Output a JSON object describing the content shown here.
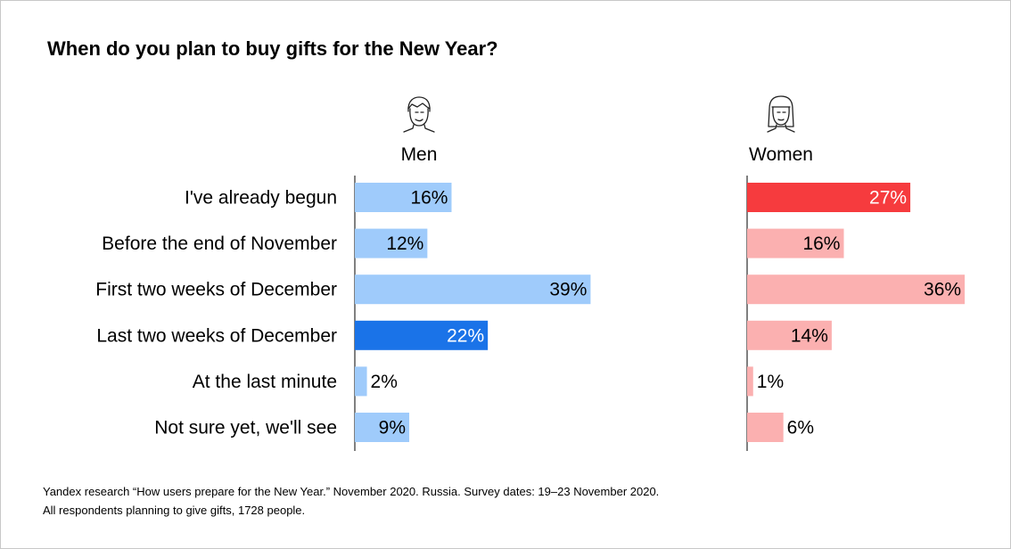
{
  "chart_data": {
    "type": "bar",
    "orientation": "horizontal",
    "title": "When do you plan to buy gifts for the New Year?",
    "categories": [
      "I've already begun",
      "Before the end of November",
      "First two weeks of December",
      "Last two weeks of December",
      "At the last minute",
      "Not sure yet, we'll see"
    ],
    "series": [
      {
        "name": "Men",
        "icon": "man-icon",
        "values": [
          16,
          12,
          39,
          22,
          2,
          9
        ],
        "labels": [
          "16%",
          "12%",
          "39%",
          "22%",
          "2%",
          "9%"
        ],
        "color": "#9fcbfb",
        "highlight_index": 3,
        "highlight_color": "#1a73e8"
      },
      {
        "name": "Women",
        "icon": "woman-icon",
        "values": [
          27,
          16,
          36,
          14,
          1,
          6
        ],
        "labels": [
          "27%",
          "16%",
          "36%",
          "14%",
          "1%",
          "6%"
        ],
        "color": "#fbb0b0",
        "highlight_index": 0,
        "highlight_color": "#f63b3e"
      }
    ],
    "value_unit": "%",
    "xlim": [
      0,
      40
    ]
  },
  "footnote": {
    "line1": "Yandex research “How users prepare for the New Year.” November 2020. Russia. Survey dates: 19–23 November 2020.",
    "line2": "All respondents planning to give gifts, 1728 people."
  }
}
